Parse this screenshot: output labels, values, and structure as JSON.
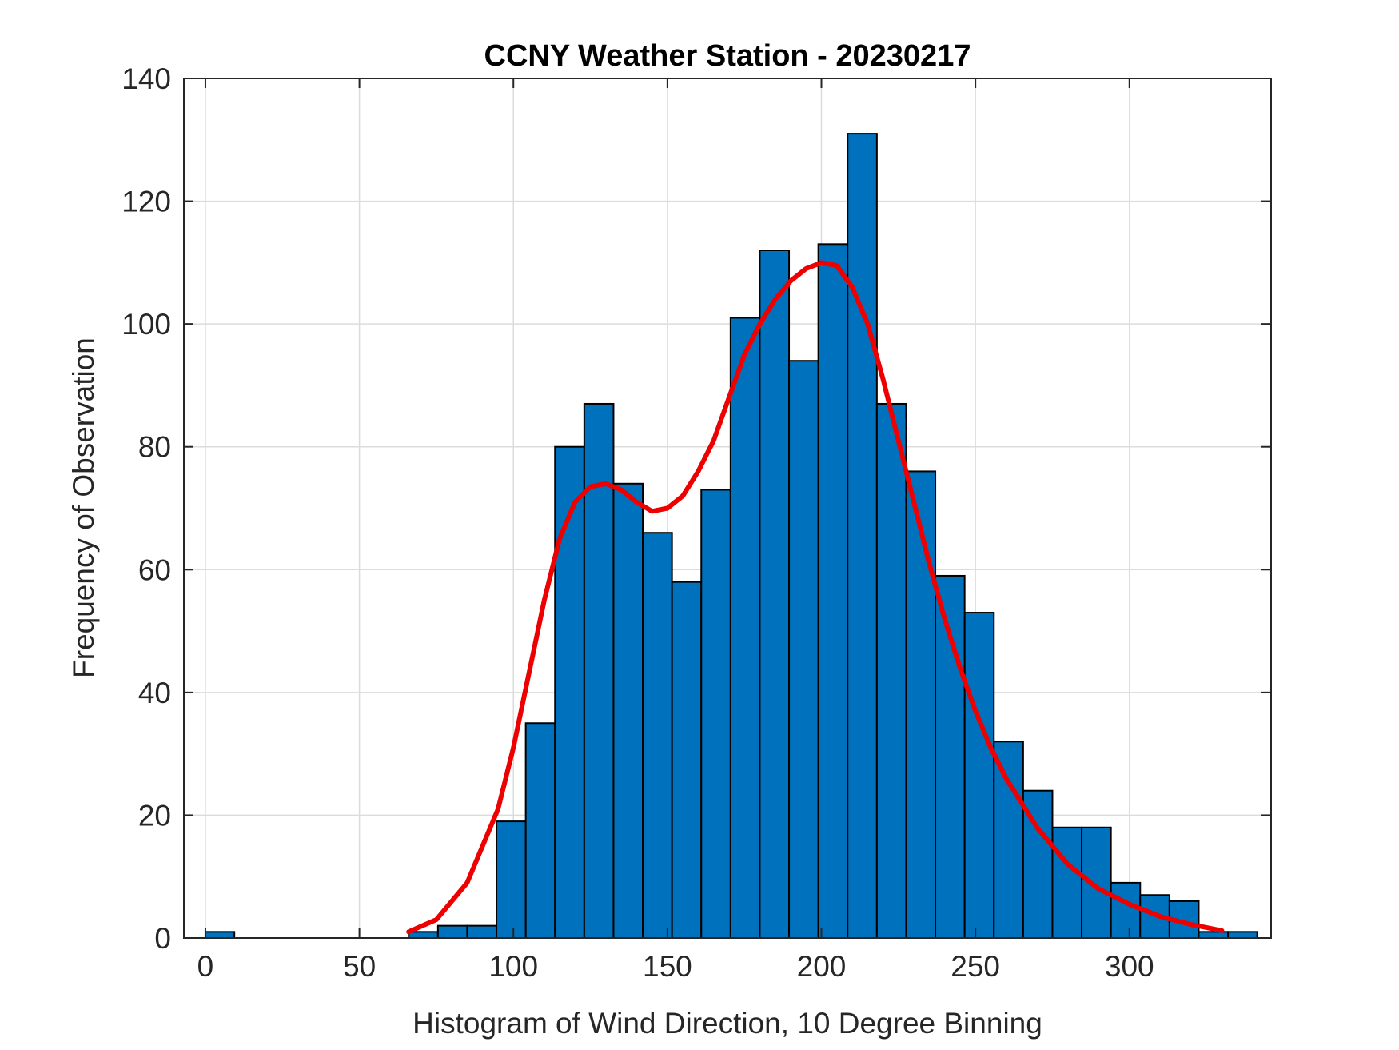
{
  "chart_data": {
    "type": "bar",
    "title": "CCNY Weather Station - 20230217",
    "xlabel": "Histogram of Wind Direction, 10 Degree Binning",
    "ylabel": "Frequency of Observation",
    "xlim": [
      -7,
      346
    ],
    "ylim": [
      0,
      140
    ],
    "xticks": [
      0,
      50,
      100,
      150,
      200,
      250,
      300
    ],
    "yticks": [
      0,
      20,
      40,
      60,
      80,
      100,
      120,
      140
    ],
    "grid": true,
    "bar_color": "#0072BD",
    "bar_edge_color": "#000000",
    "bins": [
      {
        "x0": 0,
        "x1": 9.4,
        "value": 1
      },
      {
        "x0": 66,
        "x1": 75.5,
        "value": 1
      },
      {
        "x0": 75.5,
        "x1": 85,
        "value": 2
      },
      {
        "x0": 85,
        "x1": 94.5,
        "value": 2
      },
      {
        "x0": 94.5,
        "x1": 104,
        "value": 19
      },
      {
        "x0": 104,
        "x1": 113.5,
        "value": 35
      },
      {
        "x0": 113.5,
        "x1": 123,
        "value": 80
      },
      {
        "x0": 123,
        "x1": 132.5,
        "value": 87
      },
      {
        "x0": 132.5,
        "x1": 142,
        "value": 74
      },
      {
        "x0": 142,
        "x1": 151.5,
        "value": 66
      },
      {
        "x0": 151.5,
        "x1": 161,
        "value": 58
      },
      {
        "x0": 161,
        "x1": 170.5,
        "value": 73
      },
      {
        "x0": 170.5,
        "x1": 180,
        "value": 101
      },
      {
        "x0": 180,
        "x1": 189.5,
        "value": 112
      },
      {
        "x0": 189.5,
        "x1": 199,
        "value": 94
      },
      {
        "x0": 199,
        "x1": 208.5,
        "value": 113
      },
      {
        "x0": 208.5,
        "x1": 218,
        "value": 131
      },
      {
        "x0": 218,
        "x1": 227.5,
        "value": 87
      },
      {
        "x0": 227.5,
        "x1": 237,
        "value": 76
      },
      {
        "x0": 237,
        "x1": 246.5,
        "value": 59
      },
      {
        "x0": 246.5,
        "x1": 256,
        "value": 53
      },
      {
        "x0": 256,
        "x1": 265.5,
        "value": 32
      },
      {
        "x0": 265.5,
        "x1": 275,
        "value": 24
      },
      {
        "x0": 275,
        "x1": 284.5,
        "value": 18
      },
      {
        "x0": 284.5,
        "x1": 294,
        "value": 18
      },
      {
        "x0": 294,
        "x1": 303.5,
        "value": 9
      },
      {
        "x0": 303.5,
        "x1": 313,
        "value": 7
      },
      {
        "x0": 313,
        "x1": 322.5,
        "value": 6
      },
      {
        "x0": 322.5,
        "x1": 332,
        "value": 1
      },
      {
        "x0": 332,
        "x1": 341.5,
        "value": 1
      }
    ],
    "fit_curve": {
      "color": "#EE0000",
      "x": [
        66,
        75,
        85,
        95,
        100,
        105,
        110,
        115,
        120,
        125,
        130,
        135,
        140,
        145,
        150,
        155,
        160,
        165,
        170,
        175,
        180,
        185,
        190,
        195,
        200,
        205,
        210,
        215,
        220,
        225,
        230,
        235,
        240,
        245,
        250,
        255,
        260,
        270,
        280,
        290,
        300,
        310,
        320,
        330
      ],
      "y": [
        1,
        3,
        9,
        21,
        31,
        43,
        55,
        65,
        71,
        73.5,
        74,
        73,
        71,
        69.5,
        70,
        72,
        76,
        81,
        88,
        95,
        100,
        104,
        107,
        109,
        110,
        109.5,
        106,
        100,
        91,
        81,
        71,
        61,
        52,
        44,
        37,
        31,
        26,
        18,
        12,
        8,
        5.5,
        3.5,
        2.2,
        1.2
      ]
    }
  }
}
